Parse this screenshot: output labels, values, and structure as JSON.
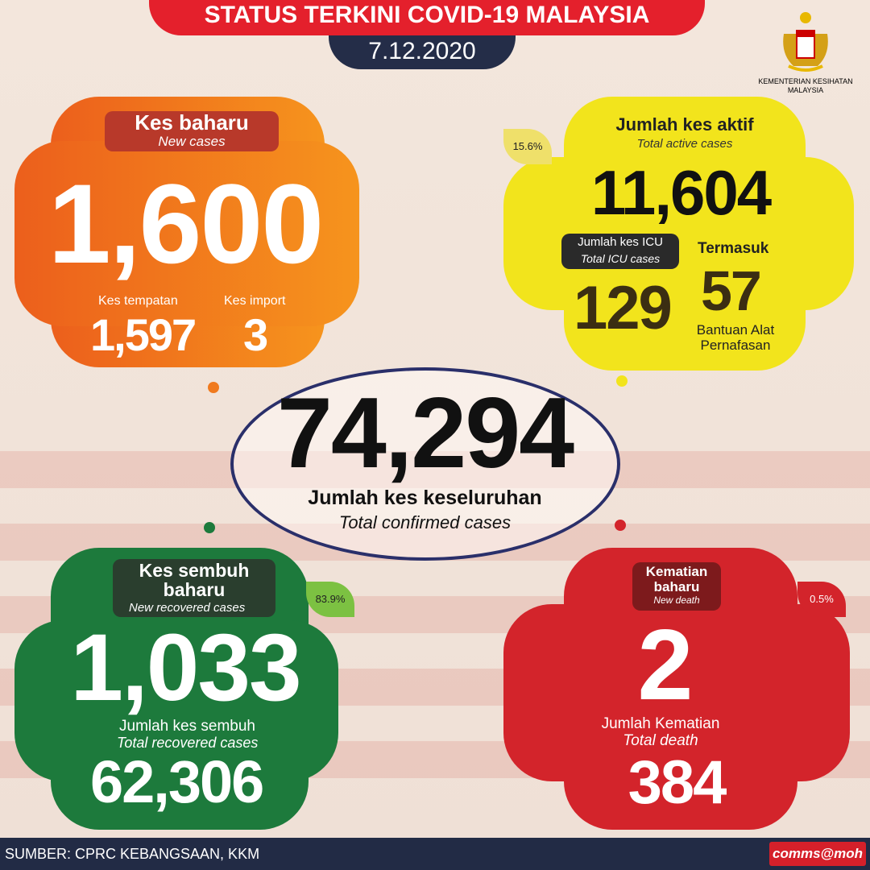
{
  "header": {
    "title": "STATUS TERKINI COVID-19 MALAYSIA",
    "date": "7.12.2020",
    "ministry": "KEMENTERIAN KESIHATAN MALAYSIA"
  },
  "new_cases": {
    "label": "Kes baharu",
    "label_en": "New cases",
    "value": "1,600",
    "local_label": "Kes tempatan",
    "local_value": "1,597",
    "import_label": "Kes import",
    "import_value": "3",
    "color": "#f07a1e"
  },
  "active": {
    "percent": "15.6%",
    "label": "Jumlah kes aktif",
    "label_en": "Total active cases",
    "value": "11,604",
    "icu_label": "Jumlah kes ICU",
    "icu_label_en": "Total ICU cases",
    "icu_value": "129",
    "incl_label": "Termasuk",
    "vent_value": "57",
    "vent_label": "Bantuan Alat Pernafasan",
    "color": "#f2e41c"
  },
  "total": {
    "value": "74,294",
    "label": "Jumlah kes keseluruhan",
    "label_en": "Total confirmed cases"
  },
  "recovered": {
    "label": "Kes sembuh baharu",
    "label_en": "New recovered cases",
    "percent": "83.9%",
    "value": "1,033",
    "total_label": "Jumlah kes sembuh",
    "total_label_en": "Total recovered cases",
    "total_value": "62,306",
    "color": "#1d7a3c"
  },
  "deaths": {
    "label": "Kematian baharu",
    "label_en": "New death",
    "percent": "0.5%",
    "value": "2",
    "total_label": "Jumlah Kematian",
    "total_label_en": "Total death",
    "total_value": "384",
    "color": "#d3242b"
  },
  "footer": {
    "source": "SUMBER: CPRC KEBANGSAAN, KKM",
    "brand": "comms@moh"
  }
}
